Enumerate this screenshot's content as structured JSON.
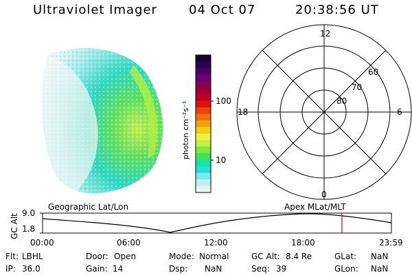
{
  "header": {
    "instrument": "Ultraviolet Imager",
    "date": "04 Oct 07",
    "time": "20:38:56 UT"
  },
  "colorbar": {
    "unit_label": "photon cm⁻²s⁻¹",
    "ticks": [
      "100",
      "10"
    ],
    "colors": [
      "#1a0030",
      "#2a0050",
      "#4a0060",
      "#6a0070",
      "#8a0050",
      "#a00030",
      "#c00020",
      "#e01010",
      "#f04010",
      "#f07010",
      "#f0a010",
      "#f0d010",
      "#f0f040",
      "#c0f040",
      "#80e840",
      "#40e060",
      "#20e0a0",
      "#20e0e0",
      "#80e8f0",
      "#c0f0f0",
      "#e8f4f4"
    ]
  },
  "polar_grid": {
    "mlt_labels": {
      "top": "12",
      "left": "18",
      "right": "6",
      "bottom": "0"
    },
    "lat_labels": [
      "60",
      "70",
      "80"
    ]
  },
  "timeline": {
    "left_label": "Geographic Lat/Lon",
    "right_label": "Apex MLat/MLT",
    "axis_title": "GC Alt",
    "y_ticks": [
      "9.0",
      "1.8"
    ],
    "x_ticks": [
      "00:00",
      "06:00",
      "12:00",
      "18:00",
      "23:59"
    ],
    "marker_color": "#e00000"
  },
  "status": {
    "flt_label": "Flt:",
    "flt_value": "LBHL",
    "ip_label": "IP:",
    "ip_value": "36.0",
    "door_label": "Door:",
    "door_value": "Open",
    "gain_label": "Gain:",
    "gain_value": "14",
    "mode_label": "Mode:",
    "mode_value": "Normal",
    "dsp_label": "Dsp:",
    "dsp_value": "NaN",
    "gcalt_label": "GC Alt:",
    "gcalt_value": "8.4 Re",
    "seq_label": "Seq:",
    "seq_value": "39",
    "glat_label": "GLat:",
    "glat_value": "NaN",
    "glon_label": "GLon:",
    "glon_value": "NaN"
  }
}
